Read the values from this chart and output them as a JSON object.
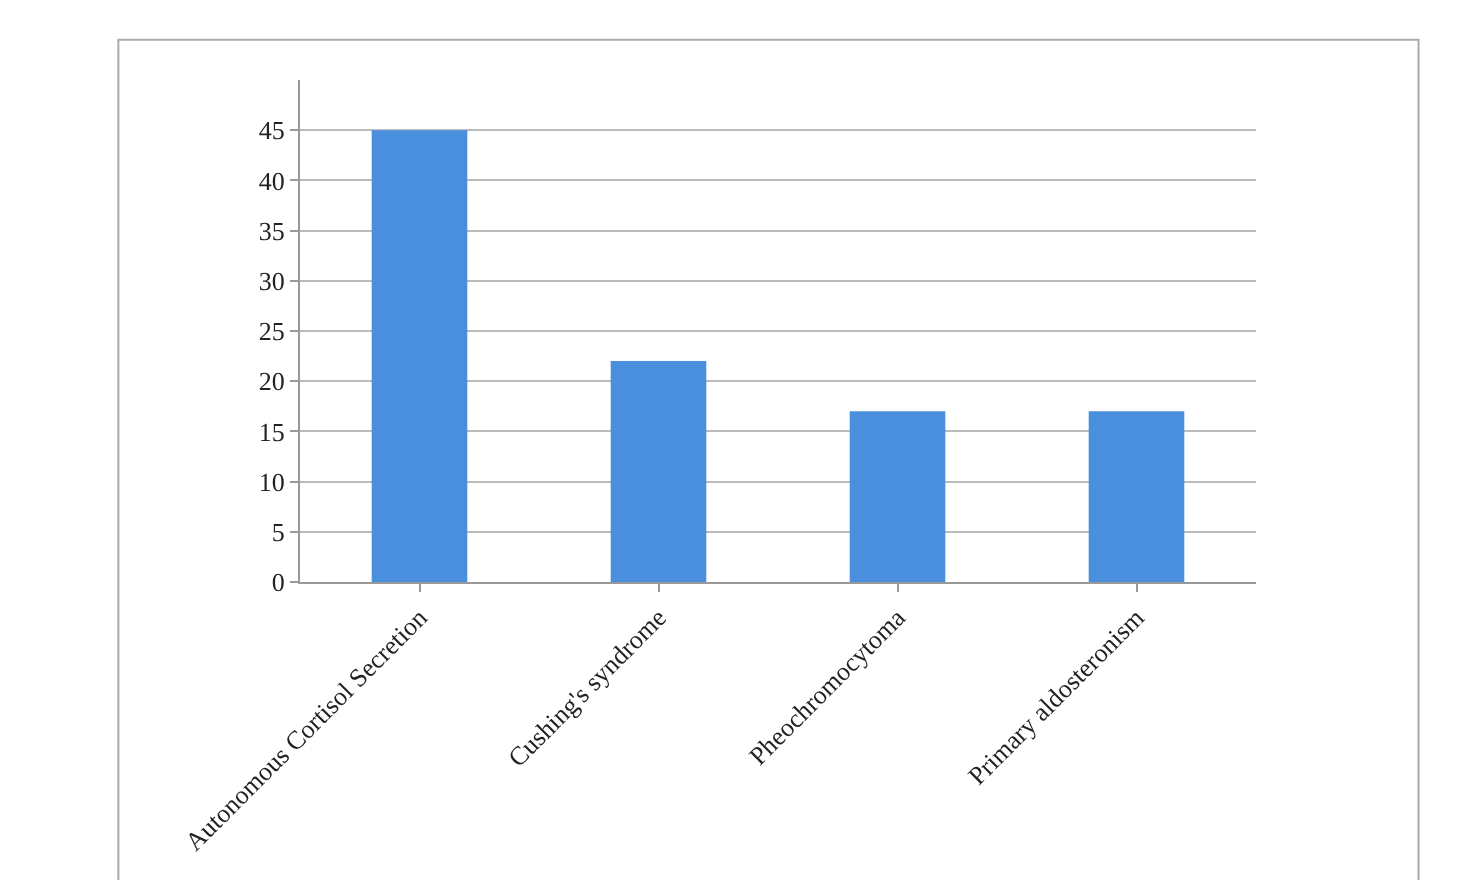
{
  "chart_data": {
    "type": "bar",
    "categories": [
      "Autonomous Cortisol Secretion",
      "Cushing's syndrome",
      "Pheochromocytoma",
      "Primary aldosteronism"
    ],
    "values": [
      45,
      22,
      17,
      17
    ],
    "color": "#4a8ede",
    "ylim": [
      0,
      50
    ],
    "yticks": [
      0,
      5,
      10,
      15,
      20,
      25,
      30,
      35,
      40,
      45
    ],
    "grid": "y",
    "legend": false
  }
}
